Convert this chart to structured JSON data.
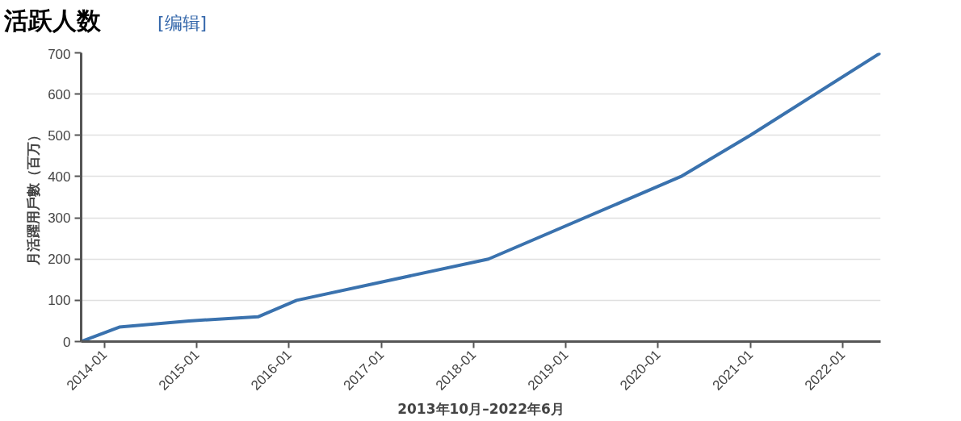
{
  "chart_data": {
    "type": "line",
    "title": "活跃人数",
    "subtitle": "[编辑]",
    "xlabel": "2013年10月–2022年6月",
    "ylabel": "月活躍用戶數（百万）",
    "x": [
      "2013-10",
      "2014-03",
      "2014-12",
      "2015-09",
      "2016-02",
      "2018-03",
      "2020-04",
      "2021-01",
      "2022-06"
    ],
    "series": [
      {
        "color": "#3a72ae",
        "values": [
          0,
          35,
          50,
          60,
          100,
          200,
          400,
          500,
          700
        ]
      }
    ],
    "xlim": [
      "2013-10",
      "2022-06"
    ],
    "xticks": [
      "2014-01",
      "2015-01",
      "2016-01",
      "2017-01",
      "2018-01",
      "2019-01",
      "2020-01",
      "2021-01",
      "2022-01"
    ],
    "ylim": [
      0,
      700
    ],
    "yticks": [
      0,
      100,
      200,
      300,
      400,
      500,
      600,
      700
    ],
    "grid": "y",
    "line_style": "solid"
  }
}
